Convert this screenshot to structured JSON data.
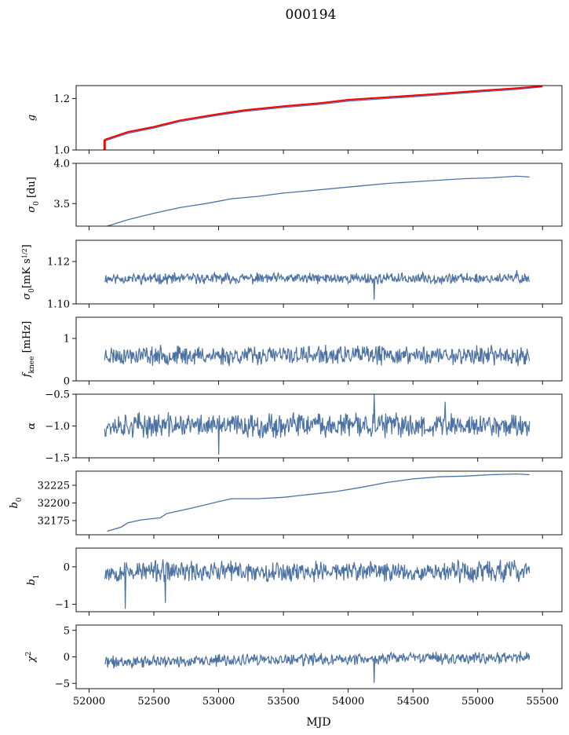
{
  "figure": {
    "title": "000194",
    "xlabel": "MJD",
    "series_color": "#4c72a4",
    "ref_color": "#ff0000"
  },
  "chart_data": [
    {
      "type": "line",
      "ylabel": "g",
      "xlim": [
        51900,
        55650
      ],
      "ylim": [
        1.0,
        1.25
      ],
      "yticks": [
        1.0,
        1.2
      ],
      "ytick_labels": [
        "1.0",
        "1.2"
      ],
      "xticks": [
        52000,
        52500,
        53000,
        53500,
        54000,
        54500,
        55000,
        55500
      ],
      "series": [
        {
          "color": "#4c72a4",
          "x": [
            52120,
            52300,
            52500,
            52700,
            53000,
            53200,
            53500,
            53800,
            54000,
            54300,
            54600,
            55000,
            55300,
            55500
          ],
          "y": [
            1.035,
            1.065,
            1.085,
            1.11,
            1.135,
            1.15,
            1.165,
            1.178,
            1.19,
            1.2,
            1.21,
            1.225,
            1.235,
            1.245
          ]
        },
        {
          "color": "#ff0000",
          "x": [
            52120,
            52300,
            52500,
            52700,
            53000,
            53200,
            53500,
            53800,
            54000,
            54300,
            54600,
            55000,
            55300,
            55500
          ],
          "y": [
            1.04,
            1.07,
            1.09,
            1.115,
            1.14,
            1.155,
            1.17,
            1.183,
            1.195,
            1.205,
            1.215,
            1.23,
            1.24,
            1.248
          ]
        }
      ],
      "annotation_drop": {
        "x": 52120,
        "from": 1.04,
        "to": 1.0
      }
    },
    {
      "type": "line",
      "ylabel": "σ0 [du]",
      "xlim": [
        51900,
        55650
      ],
      "ylim": [
        3.22,
        4.0
      ],
      "yticks": [
        3.5,
        4.0
      ],
      "ytick_labels": [
        "3.5",
        "4.0"
      ],
      "xticks": [
        52000,
        52500,
        53000,
        53500,
        54000,
        54500,
        55000,
        55500
      ],
      "series": [
        {
          "color": "#4c72a4",
          "x": [
            52140,
            52300,
            52500,
            52700,
            52900,
            53100,
            53300,
            53500,
            53700,
            53900,
            54100,
            54300,
            54500,
            54700,
            54900,
            55100,
            55300,
            55400
          ],
          "y": [
            3.22,
            3.3,
            3.38,
            3.45,
            3.5,
            3.56,
            3.59,
            3.63,
            3.66,
            3.69,
            3.72,
            3.75,
            3.77,
            3.79,
            3.81,
            3.82,
            3.84,
            3.83
          ]
        }
      ]
    },
    {
      "type": "line",
      "ylabel": "σ0[mK s^1/2]",
      "xlim": [
        51900,
        55650
      ],
      "ylim": [
        1.1,
        1.13
      ],
      "yticks": [
        1.1,
        1.12
      ],
      "ytick_labels": [
        "1.10",
        "1.12"
      ],
      "xticks": [
        52000,
        52500,
        53000,
        53500,
        54000,
        54500,
        55000,
        55500
      ],
      "noise": {
        "x_start": 52120,
        "x_end": 55400,
        "mean": 1.112,
        "amplitude": 0.004,
        "seed": 11,
        "spikes": [
          {
            "x": 54200,
            "y": 1.102
          },
          {
            "x": 55300,
            "y": 1.116
          }
        ]
      }
    },
    {
      "type": "line",
      "ylabel": "f_knee [mHz]",
      "xlim": [
        51900,
        55650
      ],
      "ylim": [
        0,
        1.5
      ],
      "yticks": [
        0,
        1
      ],
      "ytick_labels": [
        "0",
        "1"
      ],
      "xticks": [
        52000,
        52500,
        53000,
        53500,
        54000,
        54500,
        55000,
        55500
      ],
      "noise": {
        "x_start": 52120,
        "x_end": 55400,
        "mean": 0.6,
        "amplitude": 0.35,
        "seed": 23,
        "spikes": []
      }
    },
    {
      "type": "line",
      "ylabel": "α",
      "xlim": [
        51900,
        55650
      ],
      "ylim": [
        -1.5,
        -0.5
      ],
      "yticks": [
        -1.5,
        -1.0,
        -0.5
      ],
      "ytick_labels": [
        "−1.5",
        "−1.0",
        "−0.5"
      ],
      "xticks": [
        52000,
        52500,
        53000,
        53500,
        54000,
        54500,
        55000,
        55500
      ],
      "noise": {
        "x_start": 52120,
        "x_end": 55400,
        "mean": -0.99,
        "amplitude": 0.3,
        "seed": 37,
        "spikes": [
          {
            "x": 53000,
            "y": -1.45
          },
          {
            "x": 54200,
            "y": -0.5
          },
          {
            "x": 54750,
            "y": -0.62
          }
        ]
      }
    },
    {
      "type": "line",
      "ylabel": "b0",
      "xlim": [
        51900,
        55650
      ],
      "ylim": [
        32155,
        32245
      ],
      "yticks": [
        32175,
        32200,
        32225
      ],
      "ytick_labels": [
        "32175",
        "32200",
        "32225"
      ],
      "xticks": [
        52000,
        52500,
        53000,
        53500,
        54000,
        54500,
        55000,
        55500
      ],
      "series": [
        {
          "color": "#4c72a4",
          "x": [
            52140,
            52250,
            52300,
            52400,
            52550,
            52600,
            52800,
            53000,
            53100,
            53300,
            53500,
            53700,
            53900,
            54100,
            54300,
            54500,
            54700,
            54900,
            55100,
            55300,
            55400
          ],
          "y": [
            32160,
            32166,
            32172,
            32176,
            32179,
            32185,
            32193,
            32202,
            32206,
            32206,
            32208,
            32212,
            32216,
            32222,
            32229,
            32234,
            32237,
            32238,
            32240,
            32241,
            32240
          ]
        }
      ]
    },
    {
      "type": "line",
      "ylabel": "b1",
      "xlim": [
        51900,
        55650
      ],
      "ylim": [
        -1.2,
        0.5
      ],
      "yticks": [
        -1,
        0
      ],
      "ytick_labels": [
        "−1",
        "0"
      ],
      "xticks": [
        52000,
        52500,
        53000,
        53500,
        54000,
        54500,
        55000,
        55500
      ],
      "noise": {
        "x_start": 52120,
        "x_end": 55400,
        "mean": -0.12,
        "amplitude": 0.45,
        "seed": 53,
        "spikes": [
          {
            "x": 52280,
            "y": -1.12
          },
          {
            "x": 52590,
            "y": -0.96
          }
        ]
      }
    },
    {
      "type": "line",
      "ylabel": "χ2",
      "xlim": [
        51900,
        55650
      ],
      "ylim": [
        -6,
        6
      ],
      "yticks": [
        -5,
        0,
        5
      ],
      "ytick_labels": [
        "−5",
        "0",
        "5"
      ],
      "xticks": [
        52000,
        52500,
        53000,
        53500,
        54000,
        54500,
        55000,
        55500
      ],
      "xtick_labels": [
        "52000",
        "52500",
        "53000",
        "53500",
        "54000",
        "54500",
        "55000",
        "55500"
      ],
      "noise": {
        "x_start": 52120,
        "x_end": 55400,
        "mean": -1.0,
        "amplitude": 1.8,
        "seed": 71,
        "trend": 1.0,
        "spikes": [
          {
            "x": 54200,
            "y": -4.9
          }
        ]
      }
    }
  ]
}
